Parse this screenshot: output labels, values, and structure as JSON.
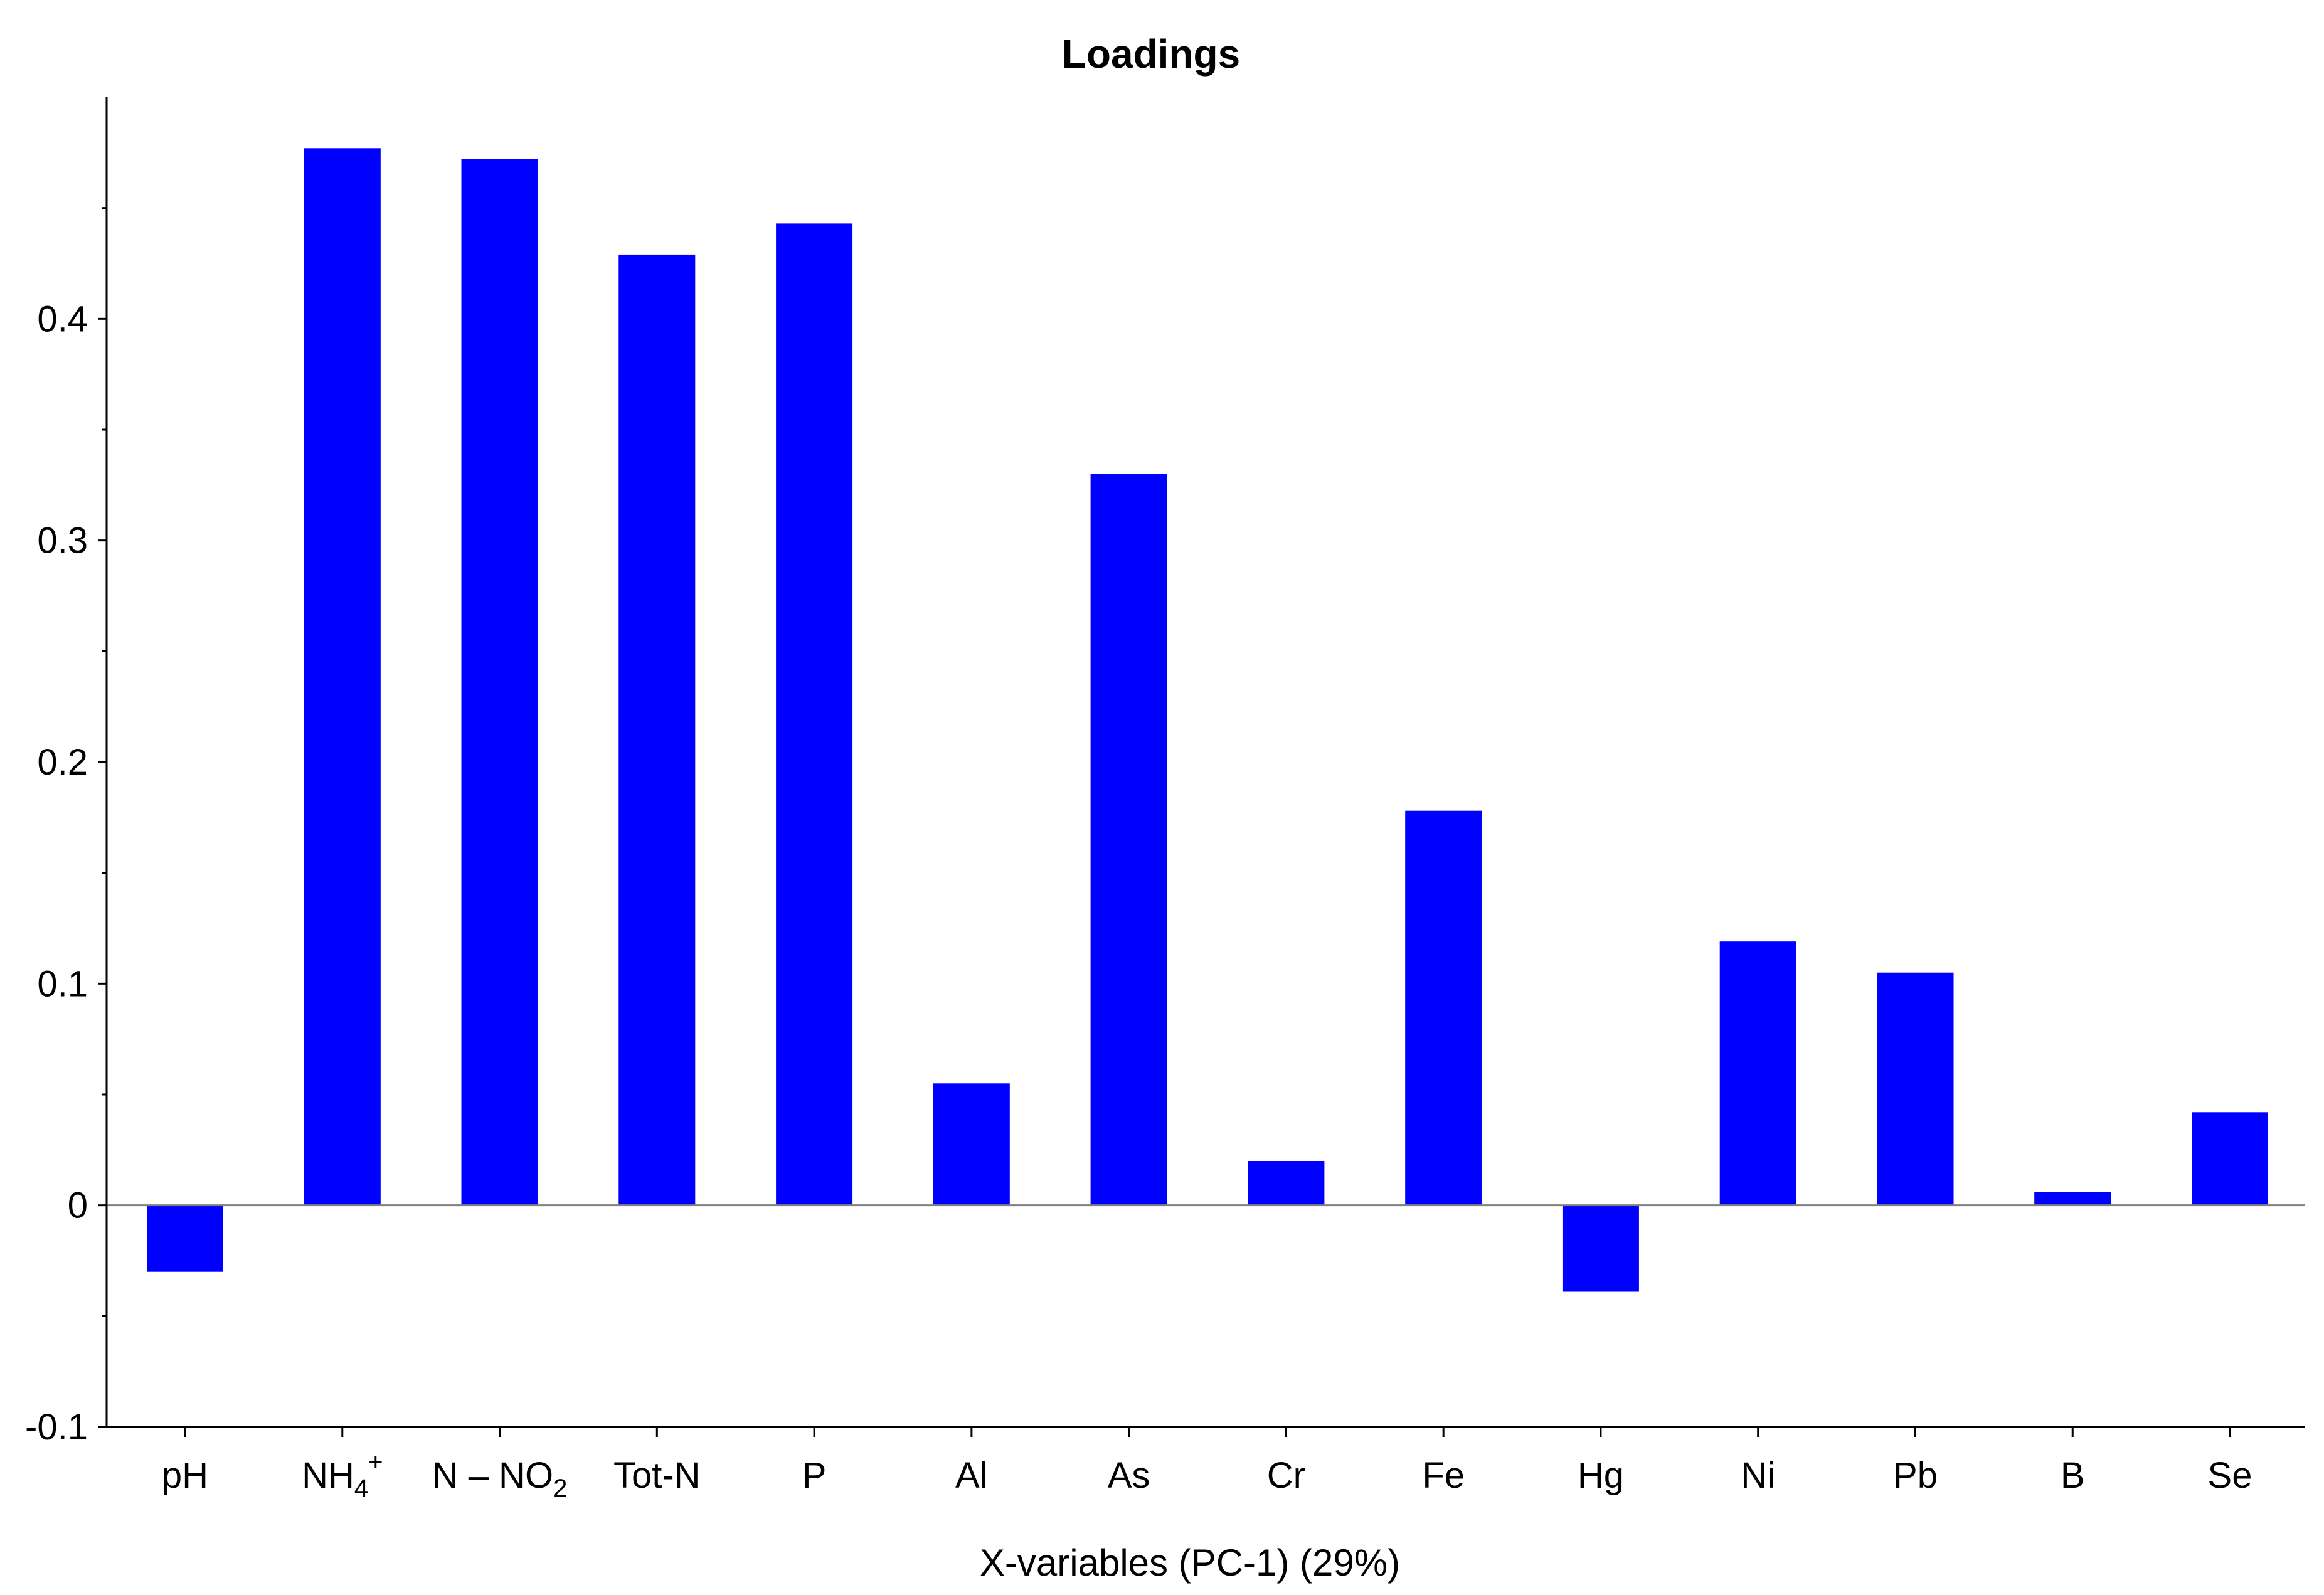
{
  "chart_data": {
    "type": "bar",
    "title": "Loadings",
    "xlabel": "X-variables (PC-1) (29%)",
    "ylabel": "",
    "categories": [
      {
        "base": "pH",
        "sup": "",
        "sub": ""
      },
      {
        "base": "NH",
        "sub": "4",
        "sup": "+"
      },
      {
        "base": "N – NO",
        "sub": "2",
        "sup": ""
      },
      {
        "base": "Tot-N",
        "sub": "",
        "sup": ""
      },
      {
        "base": "P",
        "sub": "",
        "sup": ""
      },
      {
        "base": "Al",
        "sub": "",
        "sup": ""
      },
      {
        "base": "As",
        "sub": "",
        "sup": ""
      },
      {
        "base": "Cr",
        "sub": "",
        "sup": ""
      },
      {
        "base": "Fe",
        "sub": "",
        "sup": ""
      },
      {
        "base": "Hg",
        "sub": "",
        "sup": ""
      },
      {
        "base": "Ni",
        "sub": "",
        "sup": ""
      },
      {
        "base": "Pb",
        "sub": "",
        "sup": ""
      },
      {
        "base": "B",
        "sub": "",
        "sup": ""
      },
      {
        "base": "Se",
        "sub": "",
        "sup": ""
      }
    ],
    "values": [
      -0.03,
      0.477,
      0.472,
      0.429,
      0.443,
      0.055,
      0.33,
      0.02,
      0.178,
      -0.039,
      0.119,
      0.105,
      0.006,
      0.042
    ],
    "ylim": [
      -0.1,
      0.5
    ],
    "yticks": [
      {
        "value": -0.1,
        "label": "-0.1"
      },
      {
        "value": 0,
        "label": "0"
      },
      {
        "value": 0.1,
        "label": "0.1"
      },
      {
        "value": 0.2,
        "label": "0.2"
      },
      {
        "value": 0.3,
        "label": "0.3"
      },
      {
        "value": 0.4,
        "label": "0.4"
      }
    ],
    "yminor": [
      -0.05,
      0.05,
      0.15,
      0.25,
      0.35,
      0.45
    ],
    "grid": false,
    "legend": "none",
    "bar_color": "#0000ff"
  }
}
